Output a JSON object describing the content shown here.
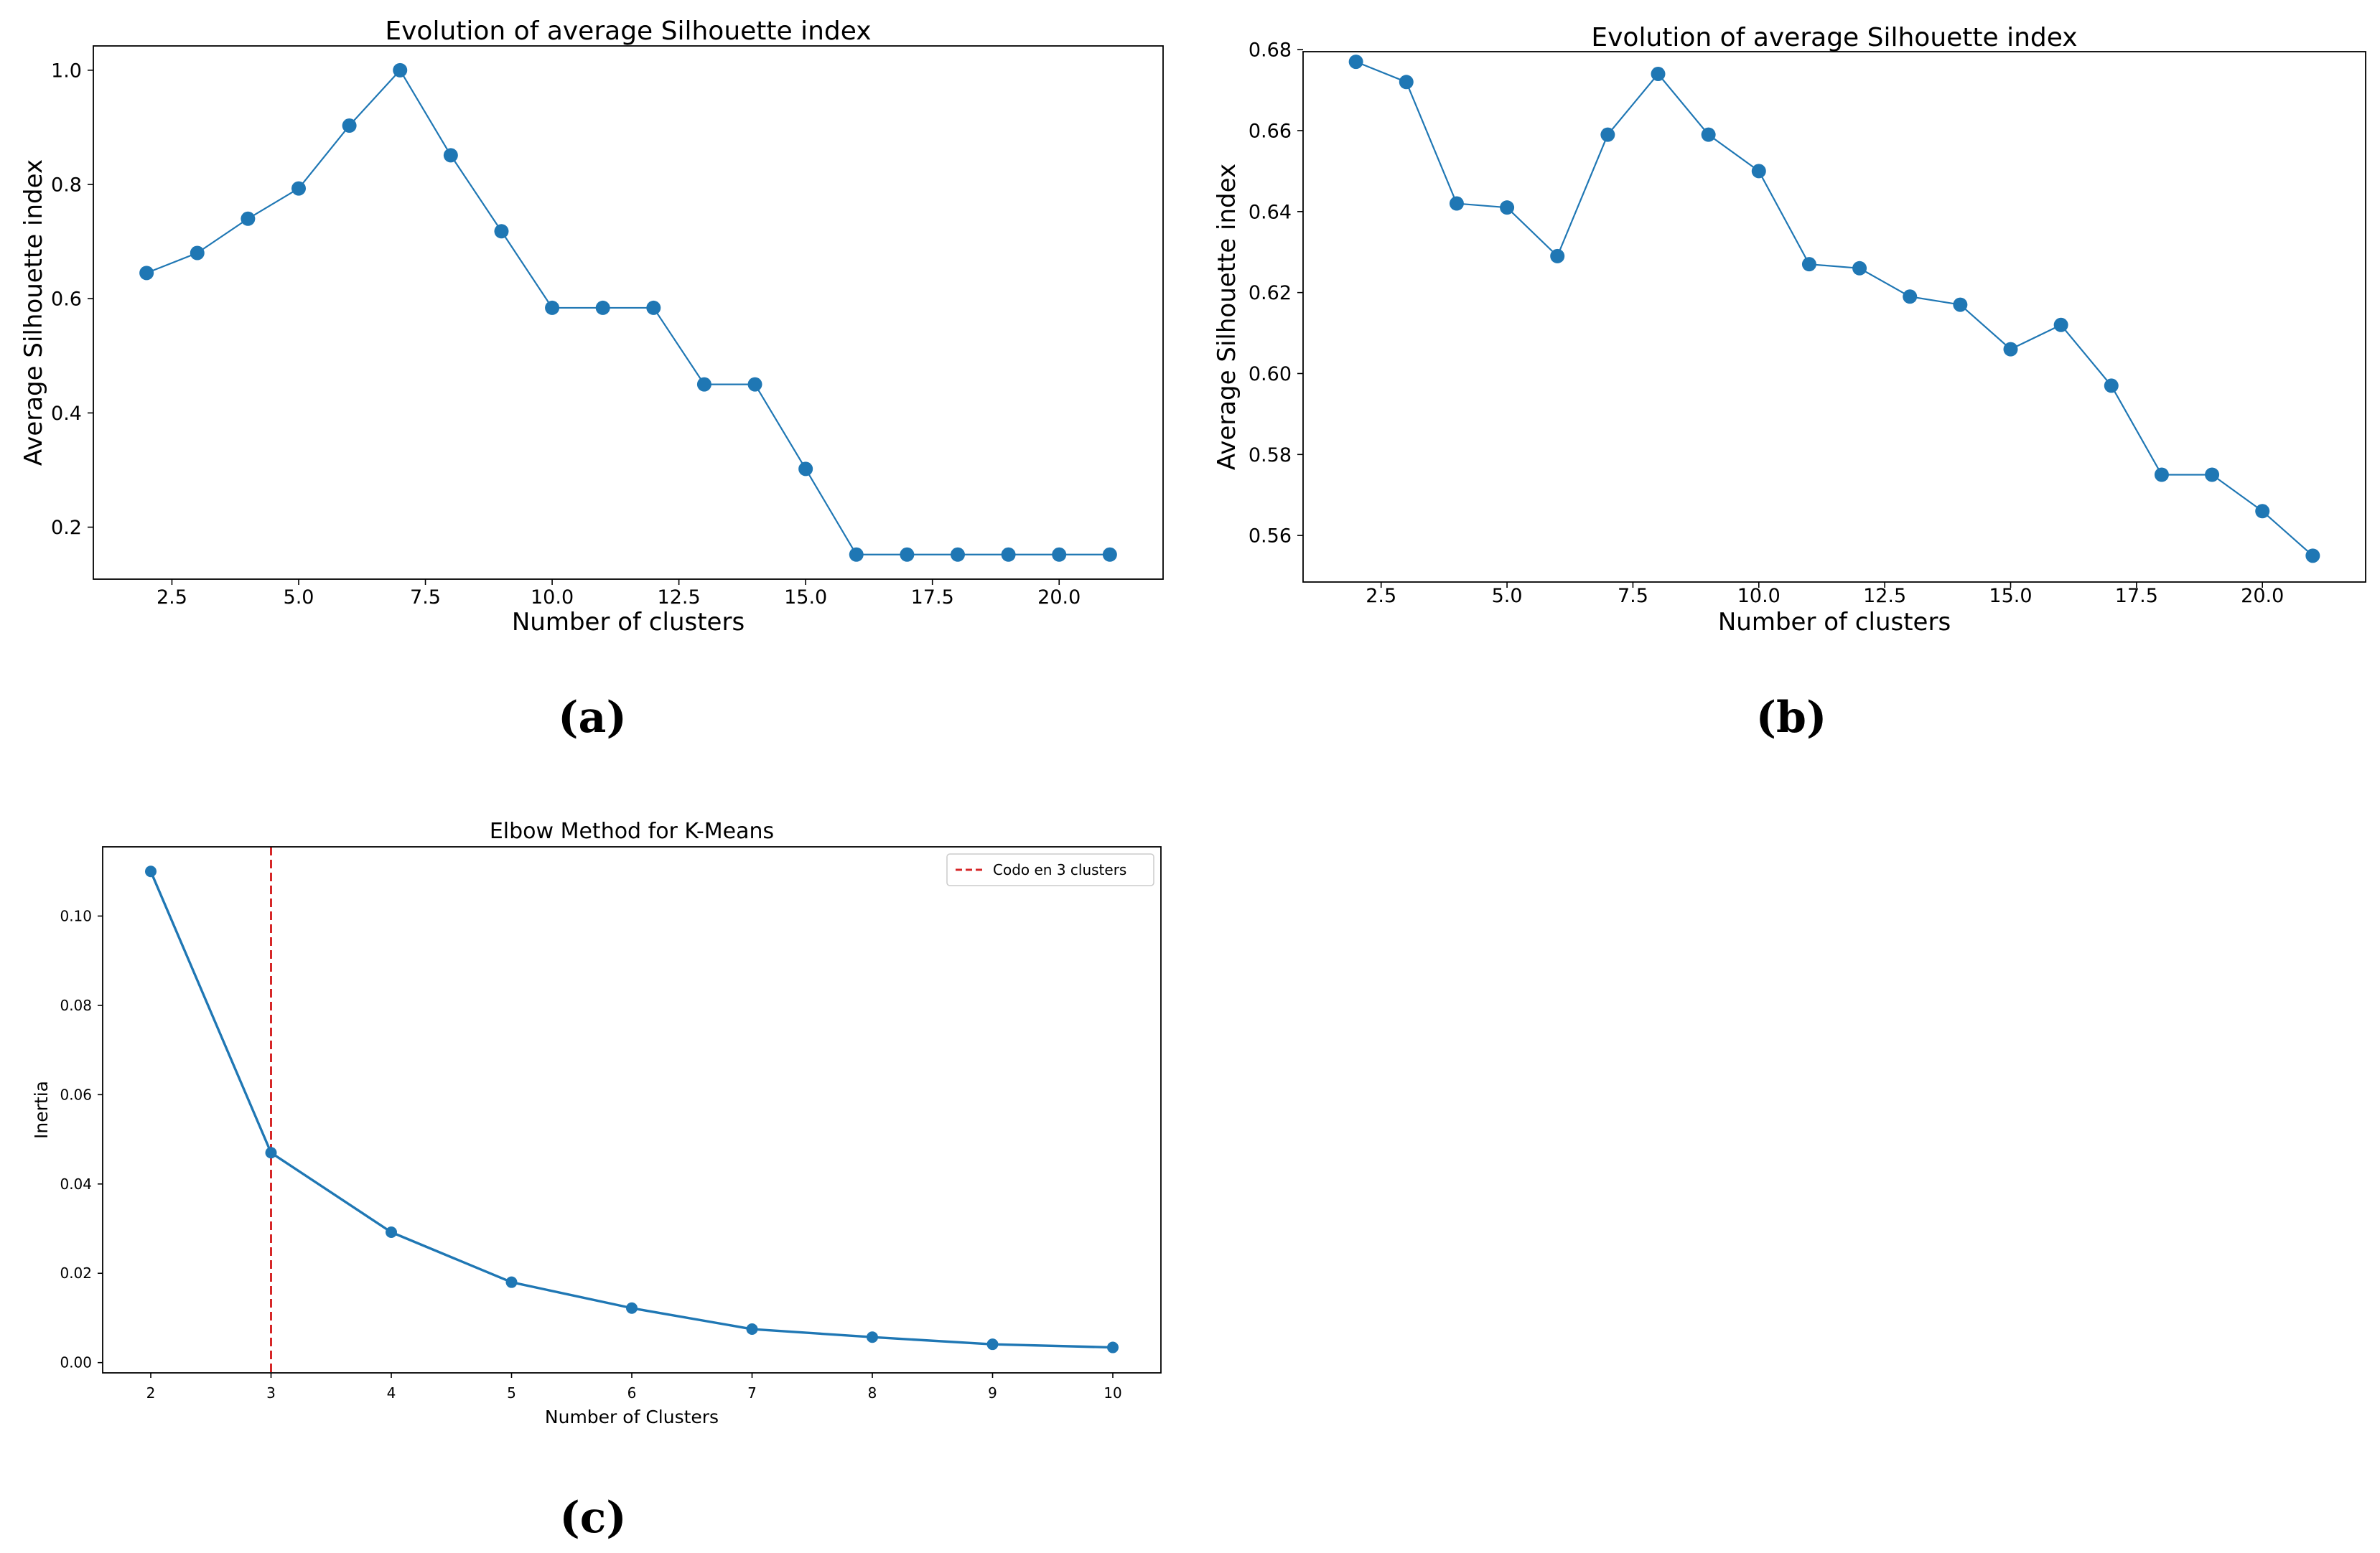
{
  "chart_data": [
    {
      "id": "a",
      "type": "line",
      "panel_label": "(a)",
      "title": "Evolution of average Silhouette index",
      "xlabel": "Number of clusters",
      "ylabel": "Average Silhouette index",
      "xlim": [
        0.95,
        22.05
      ],
      "ylim": [
        0.109,
        1.0425
      ],
      "xticks": [
        2.5,
        5.0,
        7.5,
        10.0,
        12.5,
        15.0,
        17.5,
        20.0
      ],
      "xtick_labels": [
        "2.5",
        "5.0",
        "7.5",
        "10.0",
        "12.5",
        "15.0",
        "17.5",
        "20.0"
      ],
      "yticks": [
        0.2,
        0.4,
        0.6,
        0.8,
        1.0
      ],
      "ytick_labels": [
        "0.2",
        "0.4",
        "0.6",
        "0.8",
        "1.0"
      ],
      "grid": false,
      "color": "#1f77b4",
      "series": [
        {
          "name": "Average Silhouette index",
          "x": [
            2,
            3,
            4,
            5,
            6,
            7,
            8,
            9,
            10,
            11,
            12,
            13,
            14,
            15,
            16,
            17,
            18,
            19,
            20,
            21
          ],
          "y": [
            0.645,
            0.68,
            0.74,
            0.793,
            0.903,
            1.0,
            0.851,
            0.718,
            0.584,
            0.584,
            0.584,
            0.45,
            0.45,
            0.302,
            0.152,
            0.152,
            0.152,
            0.152,
            0.152,
            0.152
          ]
        }
      ]
    },
    {
      "id": "b",
      "type": "line",
      "panel_label": "(b)",
      "title": "Evolution of average Silhouette index",
      "xlabel": "Number of clusters",
      "ylabel": "Average Silhouette index",
      "xlim": [
        0.95,
        22.05
      ],
      "ylim": [
        0.5485,
        0.6795
      ],
      "xticks": [
        2.5,
        5.0,
        7.5,
        10.0,
        12.5,
        15.0,
        17.5,
        20.0
      ],
      "xtick_labels": [
        "2.5",
        "5.0",
        "7.5",
        "10.0",
        "12.5",
        "15.0",
        "17.5",
        "20.0"
      ],
      "yticks": [
        0.56,
        0.58,
        0.6,
        0.62,
        0.64,
        0.66,
        0.68
      ],
      "ytick_labels": [
        "0.56",
        "0.58",
        "0.60",
        "0.62",
        "0.64",
        "0.66",
        "0.68"
      ],
      "grid": false,
      "color": "#1f77b4",
      "series": [
        {
          "name": "Average Silhouette index",
          "x": [
            2,
            3,
            4,
            5,
            6,
            7,
            8,
            9,
            10,
            11,
            12,
            13,
            14,
            15,
            16,
            17,
            18,
            19,
            20,
            21
          ],
          "y": [
            0.677,
            0.672,
            0.642,
            0.641,
            0.629,
            0.659,
            0.674,
            0.659,
            0.65,
            0.627,
            0.626,
            0.619,
            0.617,
            0.606,
            0.612,
            0.597,
            0.575,
            0.575,
            0.566,
            0.555
          ]
        }
      ]
    },
    {
      "id": "c",
      "type": "line",
      "panel_label": "(c)",
      "title": "Elbow Method for K-Means",
      "xlabel": "Number of Clusters",
      "ylabel": "Inertia",
      "xlim": [
        1.6,
        10.4
      ],
      "ylim": [
        -0.0023,
        0.1155
      ],
      "xticks": [
        2,
        3,
        4,
        5,
        6,
        7,
        8,
        9,
        10
      ],
      "xtick_labels": [
        "2",
        "3",
        "4",
        "5",
        "6",
        "7",
        "8",
        "9",
        "10"
      ],
      "yticks": [
        0.0,
        0.02,
        0.04,
        0.06,
        0.08,
        0.1
      ],
      "ytick_labels": [
        "0.00",
        "0.02",
        "0.04",
        "0.06",
        "0.08",
        "0.10"
      ],
      "grid": false,
      "color": "#1f77b4",
      "series": [
        {
          "name": "Inertia",
          "x": [
            2,
            3,
            4,
            5,
            6,
            7,
            8,
            9,
            10
          ],
          "y": [
            0.11,
            0.047,
            0.0292,
            0.018,
            0.0122,
            0.0075,
            0.0057,
            0.0041,
            0.0034
          ]
        }
      ],
      "vline": {
        "x": 3,
        "color": "#d62728",
        "style": "dashed",
        "label": "Codo en 3 clusters"
      },
      "legend": {
        "position": "top-right",
        "entries": [
          "Codo en 3 clusters"
        ]
      }
    }
  ]
}
